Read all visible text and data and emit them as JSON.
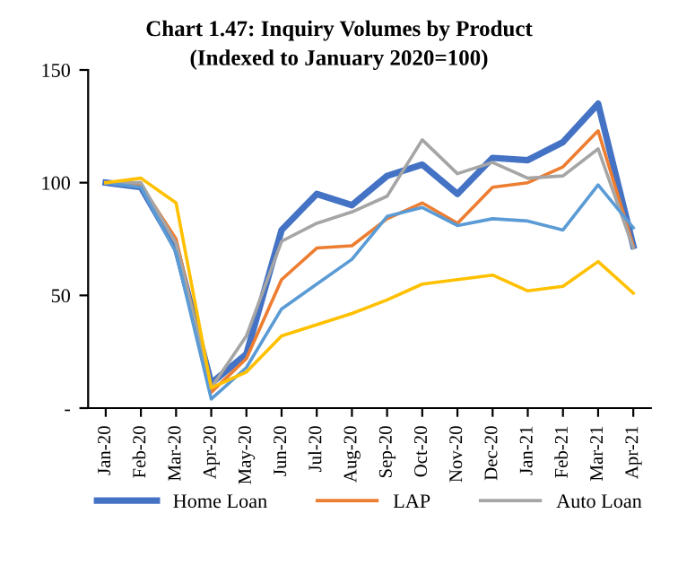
{
  "chart_data": {
    "type": "line",
    "title": "Chart 1.47: Inquiry Volumes by Product",
    "subtitle": "(Indexed to January 2020=100)",
    "categories": [
      "Jan-20",
      "Feb-20",
      "Mar-20",
      "Apr-20",
      "May-20",
      "Jun-20",
      "Jul-20",
      "Aug-20",
      "Sep-20",
      "Oct-20",
      "Nov-20",
      "Dec-20",
      "Jan-21",
      "Feb-21",
      "Mar-21",
      "Apr-21"
    ],
    "series": [
      {
        "name": "Home Loan",
        "color": "#4472c4",
        "values": [
          100,
          98,
          71,
          11,
          24,
          79,
          95,
          90,
          103,
          108,
          95,
          111,
          110,
          118,
          135,
          72
        ]
      },
      {
        "name": "LAP",
        "color": "#ed7d31",
        "values": [
          100,
          99,
          75,
          7,
          22,
          57,
          71,
          72,
          84,
          91,
          82,
          98,
          100,
          107,
          123,
          72
        ]
      },
      {
        "name": "Auto Loan",
        "color": "#a5a5a5",
        "values": [
          100,
          100,
          73,
          9,
          32,
          74,
          82,
          87,
          94,
          119,
          104,
          109,
          102,
          103,
          115,
          71
        ]
      },
      {
        "color": "#5b9bd5",
        "values": [
          100,
          98,
          69,
          4,
          18,
          44,
          55,
          66,
          85,
          89,
          81,
          84,
          83,
          79,
          99,
          80
        ]
      },
      {
        "color": "#ffc000",
        "values": [
          100,
          102,
          91,
          9,
          16,
          32,
          37,
          42,
          48,
          55,
          57,
          59,
          52,
          54,
          65,
          51
        ]
      }
    ],
    "ylim": [
      0,
      150
    ],
    "yticks": [
      {
        "value": 0,
        "label": "-"
      },
      50,
      100,
      150
    ],
    "grid": false,
    "legend": "bottom",
    "marker": "none",
    "line_style": "solid"
  }
}
